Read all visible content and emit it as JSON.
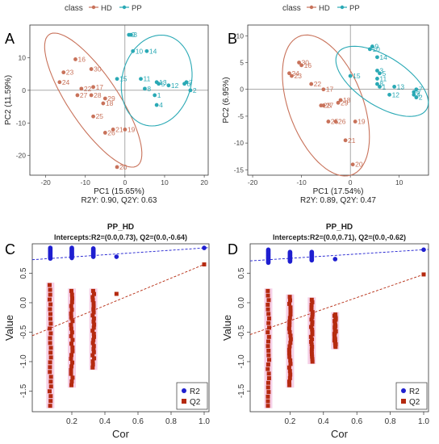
{
  "panels": {
    "A": {
      "letter": "A"
    },
    "B": {
      "letter": "B"
    },
    "C": {
      "letter": "C"
    },
    "D": {
      "letter": "D"
    }
  },
  "chart_data": [
    {
      "id": "A",
      "type": "scatter",
      "legend_title": "class",
      "legend": [
        {
          "name": "HD",
          "color": "#c8725a"
        },
        {
          "name": "PP",
          "color": "#2aa9b5"
        }
      ],
      "xlabel": "PC1 (15.65%)",
      "ylabel": "PC2 (11.59%)",
      "subtitle": "R2Y: 0.90, Q2Y: 0.63",
      "xlim": [
        -24,
        21
      ],
      "ylim": [
        -26,
        20
      ],
      "xticks": [
        -20,
        -10,
        0,
        10,
        20
      ],
      "yticks": [
        -20,
        -10,
        0,
        10
      ],
      "series": [
        {
          "name": "HD",
          "color": "#c8725a",
          "points": [
            {
              "x": -12.5,
              "y": 9.5,
              "label": "16"
            },
            {
              "x": -8.5,
              "y": 6.5,
              "label": "30"
            },
            {
              "x": -15.5,
              "y": 5.5,
              "label": "23"
            },
            {
              "x": -16.5,
              "y": 2.5,
              "label": "24"
            },
            {
              "x": -8,
              "y": 1,
              "label": "17"
            },
            {
              "x": -11,
              "y": 0.5,
              "label": "22"
            },
            {
              "x": -12,
              "y": -1.5,
              "label": "27"
            },
            {
              "x": -8.5,
              "y": -1.5,
              "label": "28"
            },
            {
              "x": -5,
              "y": -2.5,
              "label": "29"
            },
            {
              "x": -5.5,
              "y": -4,
              "label": "18"
            },
            {
              "x": -8,
              "y": -8,
              "label": "25"
            },
            {
              "x": -3,
              "y": -12,
              "label": "21"
            },
            {
              "x": -5,
              "y": -13,
              "label": "26"
            },
            {
              "x": 0,
              "y": -12,
              "label": "19"
            },
            {
              "x": -2,
              "y": -23.5,
              "label": "20"
            }
          ]
        },
        {
          "name": "PP",
          "color": "#2aa9b5",
          "points": [
            {
              "x": 1,
              "y": 17,
              "label": "9"
            },
            {
              "x": 1.5,
              "y": 17,
              "label": "3"
            },
            {
              "x": 2,
              "y": 12,
              "label": "10"
            },
            {
              "x": 5.5,
              "y": 12,
              "label": "14"
            },
            {
              "x": -2,
              "y": 3.5,
              "label": "15"
            },
            {
              "x": 4,
              "y": 3.5,
              "label": "11"
            },
            {
              "x": 8,
              "y": 2.5,
              "label": "13"
            },
            {
              "x": 8.5,
              "y": 2,
              "label": "5"
            },
            {
              "x": 11,
              "y": 1.5,
              "label": "12"
            },
            {
              "x": 5,
              "y": 0.5,
              "label": "8"
            },
            {
              "x": 7.5,
              "y": -1.5,
              "label": "1"
            },
            {
              "x": 15.5,
              "y": 2.5,
              "label": "7"
            },
            {
              "x": 15,
              "y": 2,
              "label": "6"
            },
            {
              "x": 16.5,
              "y": 0,
              "label": "2"
            },
            {
              "x": 8,
              "y": -4.5,
              "label": "4"
            }
          ]
        }
      ]
    },
    {
      "id": "B",
      "type": "scatter",
      "legend_title": "class",
      "legend": [
        {
          "name": "HD",
          "color": "#c8725a"
        },
        {
          "name": "PP",
          "color": "#2aa9b5"
        }
      ],
      "xlabel": "PC1 (17.54%)",
      "ylabel": "PC2 (6.95%)",
      "subtitle": "R2Y: 0.89, Q2Y: 0.47",
      "xlim": [
        -21,
        16
      ],
      "ylim": [
        -16,
        12
      ],
      "xticks": [
        -20,
        -10,
        0,
        10
      ],
      "yticks": [
        -15,
        -10,
        -5,
        0,
        5,
        10
      ],
      "series": [
        {
          "name": "HD",
          "color": "#c8725a",
          "points": [
            {
              "x": -10.5,
              "y": 5,
              "label": "30"
            },
            {
              "x": -10,
              "y": 4.5,
              "label": "16"
            },
            {
              "x": -12.5,
              "y": 3,
              "label": "24"
            },
            {
              "x": -12,
              "y": 2.5,
              "label": "23"
            },
            {
              "x": -8,
              "y": 1,
              "label": "22"
            },
            {
              "x": -5.5,
              "y": 0,
              "label": "17"
            },
            {
              "x": -2,
              "y": -2,
              "label": "18"
            },
            {
              "x": -2.5,
              "y": -2.5,
              "label": "29"
            },
            {
              "x": -5.5,
              "y": -3,
              "label": "27"
            },
            {
              "x": -6,
              "y": -3,
              "label": "28"
            },
            {
              "x": -3,
              "y": -6,
              "label": "26"
            },
            {
              "x": -4.5,
              "y": -6,
              "label": "25"
            },
            {
              "x": 1,
              "y": -6,
              "label": "19"
            },
            {
              "x": -1,
              "y": -9.5,
              "label": "21"
            },
            {
              "x": 0.5,
              "y": -14,
              "label": "20"
            }
          ]
        },
        {
          "name": "PP",
          "color": "#2aa9b5",
          "points": [
            {
              "x": 4.5,
              "y": 8,
              "label": "9"
            },
            {
              "x": 4,
              "y": 7.5,
              "label": "10"
            },
            {
              "x": 5.5,
              "y": 6,
              "label": "14"
            },
            {
              "x": 0,
              "y": 2.5,
              "label": "15"
            },
            {
              "x": 5.5,
              "y": 3.5,
              "label": "3"
            },
            {
              "x": 6,
              "y": 3,
              "label": "5"
            },
            {
              "x": 5.5,
              "y": 2,
              "label": "11"
            },
            {
              "x": 5.5,
              "y": 1,
              "label": "8"
            },
            {
              "x": 6,
              "y": 0.5,
              "label": "1"
            },
            {
              "x": 9,
              "y": 0.5,
              "label": "13"
            },
            {
              "x": 8,
              "y": -1,
              "label": "12"
            },
            {
              "x": 13.5,
              "y": 0,
              "label": "7"
            },
            {
              "x": 13,
              "y": -1,
              "label": "4"
            },
            {
              "x": 13.5,
              "y": -1.5,
              "label": "2"
            },
            {
              "x": 13,
              "y": -0.5,
              "label": "6"
            }
          ]
        }
      ]
    },
    {
      "id": "C",
      "type": "scatter",
      "title": "PP_HD",
      "subtitle": "Intercepts:R2=(0.0,0.73), Q2=(0.0,-0.64)",
      "xlabel": "Cor",
      "ylabel": "Value",
      "xlim": [
        0,
        1
      ],
      "ylim": [
        -1.85,
        1.0
      ],
      "xticks": [
        0.2,
        0.4,
        0.6,
        0.8,
        1.0
      ],
      "yticks": [
        -1.5,
        -1.0,
        -0.5,
        0.0,
        0.5
      ],
      "legend": [
        {
          "name": "R2",
          "color": "#1f1fd0"
        },
        {
          "name": "Q2",
          "color": "#b52a10"
        }
      ],
      "intercepts": {
        "R2": [
          0.0,
          0.73
        ],
        "Q2": [
          0.0,
          -0.64
        ]
      },
      "lines": {
        "R2": [
          [
            0,
            0.73
          ],
          [
            1,
            0.93
          ]
        ],
        "Q2": [
          [
            0,
            -0.64
          ],
          [
            1,
            0.65
          ]
        ]
      },
      "columns": [
        {
          "x": 0.07,
          "r2": [
            0.75,
            0.93
          ],
          "q2": [
            -1.75,
            0.3
          ]
        },
        {
          "x": 0.2,
          "r2": [
            0.76,
            0.93
          ],
          "q2": [
            -1.4,
            0.2
          ]
        },
        {
          "x": 0.33,
          "r2": [
            0.78,
            0.92
          ],
          "q2": [
            -1.1,
            0.2
          ]
        },
        {
          "x": 0.47,
          "r2": [
            0.78,
            0.78
          ],
          "q2": [
            0.15,
            0.15
          ]
        },
        {
          "x": 1.0,
          "r2": [
            0.93,
            0.93
          ],
          "q2": [
            0.65,
            0.65
          ]
        }
      ]
    },
    {
      "id": "D",
      "type": "scatter",
      "title": "PP_HD",
      "subtitle": "Intercepts:R2=(0.0,0.71), Q2=(0.0,-0.62)",
      "xlabel": "Cor",
      "ylabel": "Value",
      "xlim": [
        0,
        1
      ],
      "ylim": [
        -1.85,
        1.0
      ],
      "xticks": [
        0.2,
        0.4,
        0.6,
        0.8,
        1.0
      ],
      "yticks": [
        -1.5,
        -1.0,
        -0.5,
        0.0,
        0.5
      ],
      "legend": [
        {
          "name": "R2",
          "color": "#1f1fd0"
        },
        {
          "name": "Q2",
          "color": "#b52a10"
        }
      ],
      "intercepts": {
        "R2": [
          0.0,
          0.71
        ],
        "Q2": [
          0.0,
          -0.62
        ]
      },
      "lines": {
        "R2": [
          [
            0,
            0.71
          ],
          [
            1,
            0.9
          ]
        ],
        "Q2": [
          [
            0,
            -0.62
          ],
          [
            1,
            0.48
          ]
        ]
      },
      "columns": [
        {
          "x": 0.07,
          "r2": [
            0.68,
            0.9
          ],
          "q2": [
            -1.75,
            0.2
          ]
        },
        {
          "x": 0.2,
          "r2": [
            0.7,
            0.86
          ],
          "q2": [
            -1.4,
            0.1
          ]
        },
        {
          "x": 0.33,
          "r2": [
            0.72,
            0.86
          ],
          "q2": [
            -1.0,
            0.05
          ]
        },
        {
          "x": 0.47,
          "r2": [
            0.74,
            0.74
          ],
          "q2": [
            -0.75,
            -0.2
          ]
        },
        {
          "x": 1.0,
          "r2": [
            0.9,
            0.9
          ],
          "q2": [
            0.48,
            0.48
          ]
        }
      ]
    }
  ]
}
